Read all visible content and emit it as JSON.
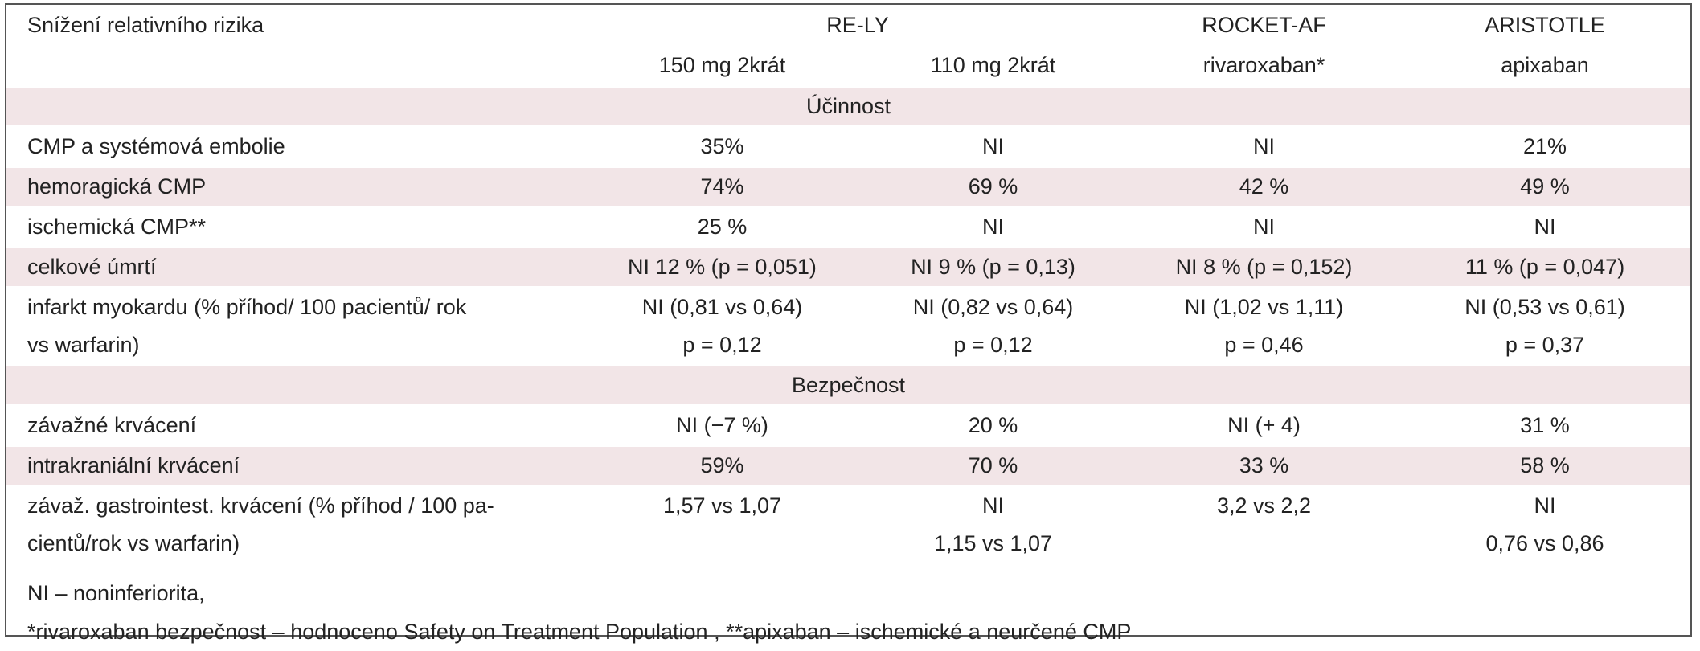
{
  "table": {
    "header": {
      "label": "Snížení relativního rizika",
      "groups": [
        "RE-LY",
        "ROCKET-AF",
        "ARISTOTLE"
      ],
      "subheaders": [
        "150 mg 2krát",
        "110 mg 2krát",
        "rivaroxaban*",
        "apixaban"
      ]
    },
    "sections": [
      {
        "title": "Účinnost",
        "rows": [
          {
            "label": [
              "CMP a systémová embolie"
            ],
            "cells": [
              [
                "35%"
              ],
              [
                "NI"
              ],
              [
                "NI"
              ],
              [
                "21%"
              ]
            ]
          },
          {
            "label": [
              "hemoragická CMP"
            ],
            "cells": [
              [
                "74%"
              ],
              [
                "69 %"
              ],
              [
                "42 %"
              ],
              [
                "49 %"
              ]
            ]
          },
          {
            "label": [
              "ischemická CMP**"
            ],
            "cells": [
              [
                "25 %"
              ],
              [
                "NI"
              ],
              [
                "NI"
              ],
              [
                "NI"
              ]
            ]
          },
          {
            "label": [
              "celkové úmrtí"
            ],
            "cells": [
              [
                "NI 12 % (p = 0,051)"
              ],
              [
                "NI 9 % (p = 0,13)"
              ],
              [
                "NI 8 % (p = 0,152)"
              ],
              [
                "11 % (p = 0,047)"
              ]
            ]
          },
          {
            "label": [
              "infarkt myokardu (% příhod/ 100 pacientů/ rok",
              "vs warfarin)"
            ],
            "cells": [
              [
                "NI (0,81 vs 0,64)",
                "p = 0,12"
              ],
              [
                "NI (0,82 vs 0,64)",
                "p = 0,12"
              ],
              [
                "NI (1,02 vs 1,11)",
                "p = 0,46"
              ],
              [
                "NI (0,53 vs 0,61)",
                "p = 0,37"
              ]
            ]
          }
        ]
      },
      {
        "title": "Bezpečnost",
        "rows": [
          {
            "label": [
              "závažné krvácení"
            ],
            "cells": [
              [
                "NI (−7 %)"
              ],
              [
                "20 %"
              ],
              [
                "NI (+ 4)"
              ],
              [
                "31 %"
              ]
            ]
          },
          {
            "label": [
              "intrakraniální krvácení"
            ],
            "cells": [
              [
                "59%"
              ],
              [
                "70 %"
              ],
              [
                "33 %"
              ],
              [
                "58 %"
              ]
            ]
          },
          {
            "label": [
              "závaž. gastrointest. krvácení (% příhod / 100 pa-",
              "cientů/rok vs warfarin)"
            ],
            "cells": [
              [
                "1,57 vs 1,07"
              ],
              [
                "NI",
                "1,15 vs 1,07"
              ],
              [
                "3,2 vs 2,2"
              ],
              [
                "NI",
                "0,76 vs 0,86"
              ]
            ]
          }
        ]
      }
    ],
    "footnotes": [
      "NI – noninferiorita,",
      "*rivaroxaban bezpečnost – hodnoceno Safety on Treatment Population , **apixaban – ischemické a neurčené CMP"
    ]
  }
}
